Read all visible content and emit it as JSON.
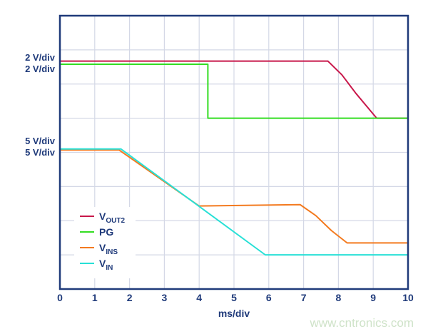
{
  "chart_data": {
    "type": "line",
    "xlabel": "ms/div",
    "xlim": [
      0,
      10
    ],
    "ylim": [
      0,
      8
    ],
    "x_ticks": [
      "0",
      "1",
      "2",
      "3",
      "4",
      "5",
      "6",
      "7",
      "8",
      "9",
      "10"
    ],
    "y_scale_labels": [
      "2 V/div",
      "2 V/div",
      "5 V/div",
      "5 V/div"
    ],
    "grid": true,
    "legend_position": "bottom-left",
    "series": [
      {
        "name": "VOUT2",
        "label_main": "V",
        "label_sub": "OUT2",
        "color": "#c8174a",
        "points": [
          [
            0,
            6.67
          ],
          [
            7.7,
            6.67
          ],
          [
            8.1,
            6.27
          ],
          [
            8.5,
            5.73
          ],
          [
            9.1,
            5.0
          ],
          [
            10,
            5.0
          ]
        ]
      },
      {
        "name": "PG",
        "label_main": "PG",
        "label_sub": "",
        "color": "#33dd22",
        "points": [
          [
            0,
            6.58
          ],
          [
            4.25,
            6.58
          ],
          [
            4.25,
            5.0
          ],
          [
            10,
            5.0
          ]
        ]
      },
      {
        "name": "VINS",
        "label_main": "V",
        "label_sub": "INS",
        "color": "#f37a1f",
        "points": [
          [
            0,
            4.07
          ],
          [
            1.7,
            4.07
          ],
          [
            4.0,
            2.43
          ],
          [
            6.9,
            2.47
          ],
          [
            7.35,
            2.15
          ],
          [
            7.8,
            1.71
          ],
          [
            8.25,
            1.35
          ],
          [
            10,
            1.35
          ]
        ]
      },
      {
        "name": "VIN",
        "label_main": "V",
        "label_sub": "IN",
        "color": "#27e0d6",
        "points": [
          [
            0,
            4.1
          ],
          [
            1.75,
            4.1
          ],
          [
            5.9,
            1.0
          ],
          [
            10,
            1.0
          ]
        ]
      }
    ]
  },
  "watermark": "www.cntronics.com"
}
